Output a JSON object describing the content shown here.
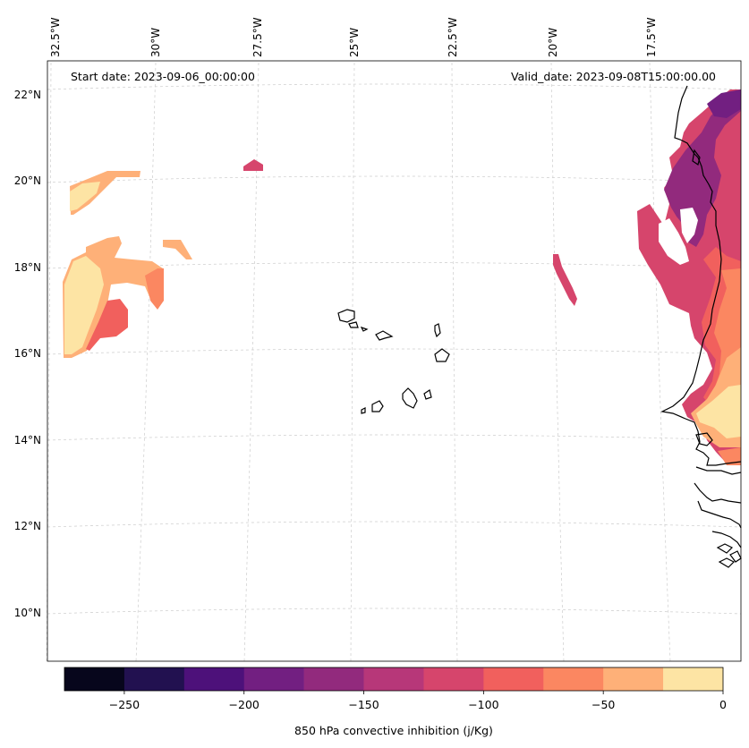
{
  "map": {
    "start_label": "Start date: 2023-09-06_00:00:00",
    "valid_label": "Valid_date: 2023-09-08T15:00:00.00",
    "lon_ticks": [
      "32.5°W",
      "30°W",
      "27.5°W",
      "25°W",
      "22.5°W",
      "20°W",
      "17.5°W"
    ],
    "lat_ticks": [
      "22°N",
      "20°N",
      "18°N",
      "16°N",
      "14°N",
      "12°N",
      "10°N"
    ],
    "field": "850 hPa convective inhibition",
    "region": "Cabo Verde islands and West African coast"
  },
  "colorbar": {
    "label": "850 hPa convective inhibition (j/Kg)",
    "tick_labels": [
      "−250",
      "−200",
      "−150",
      "−100",
      "−50",
      "0"
    ],
    "bounds": [
      -275,
      0
    ],
    "levels": [
      -275,
      -250,
      -225,
      -200,
      -175,
      -150,
      -125,
      -100,
      -75,
      -50,
      -25,
      0
    ],
    "colors": [
      "#07061c",
      "#221150",
      "#4d117a",
      "#721f81",
      "#922a7d",
      "#b73779",
      "#d6456c",
      "#f1605d",
      "#fb8761",
      "#feb078",
      "#fde4a4"
    ]
  }
}
